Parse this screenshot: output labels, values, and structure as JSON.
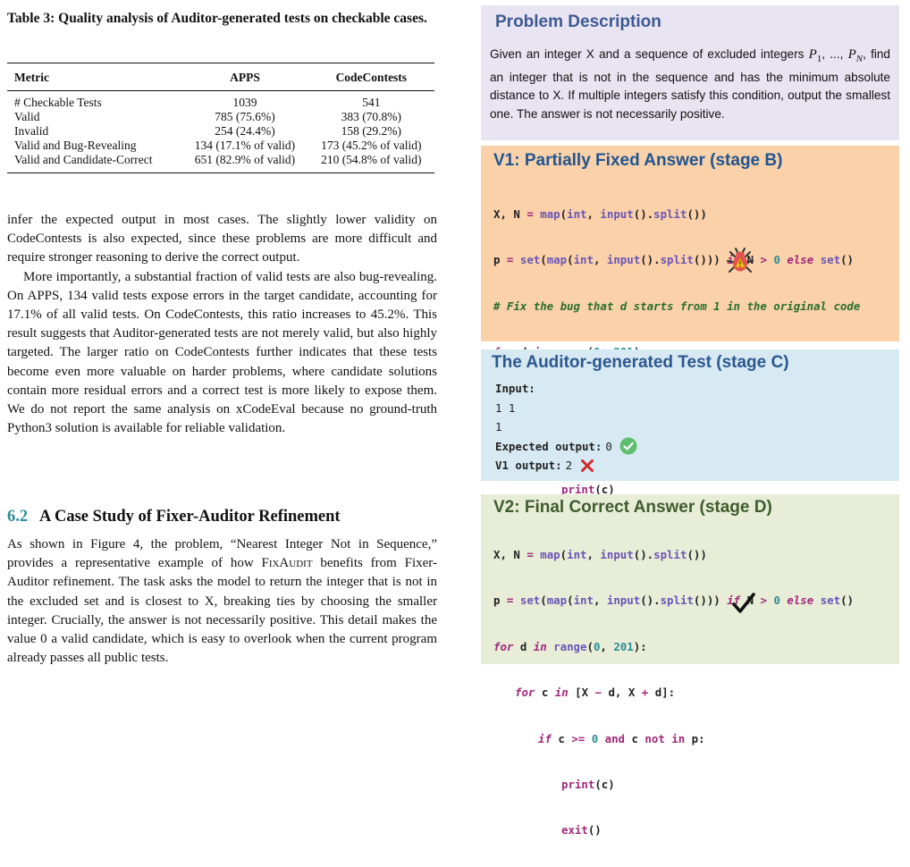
{
  "table": {
    "caption": "Table 3: Quality analysis of Auditor-generated tests on checkable cases.",
    "headers": [
      "Metric",
      "APPS",
      "CodeContests"
    ],
    "rows": [
      [
        "# Checkable Tests",
        "1039",
        "541"
      ],
      [
        "Valid",
        "785 (75.6%)",
        "383 (70.8%)"
      ],
      [
        "Invalid",
        "254 (24.4%)",
        "158 (29.2%)"
      ],
      [
        "Valid and Bug-Revealing",
        "134 (17.1% of valid)",
        "173 (45.2% of valid)"
      ],
      [
        "Valid and Candidate-Correct",
        "651 (82.9% of valid)",
        "210 (54.8% of valid)"
      ]
    ]
  },
  "body": {
    "para1": "infer the expected output in most cases. The slightly lower validity on CodeContests is also expected, since these problems are more difficult and require stronger reasoning to derive the correct output.",
    "para2": "More importantly, a substantial fraction of valid tests are also bug-revealing. On APPS, 134 valid tests expose errors in the target candidate, accounting for 17.1% of all valid tests. On CodeContests, this ratio increases to 45.2%. This result suggests that Auditor-generated tests are not merely valid, but also highly targeted. The larger ratio on CodeContests further indicates that these tests become even more valuable on harder problems, where candidate solutions contain more residual errors and a correct test is more likely to expose them. We do not report the same analysis on xCodeEval because no ground-truth Python3 solution is available for reliable validation."
  },
  "section": {
    "number": "6.2",
    "title": "A Case Study of Fixer-Auditor Refinement",
    "text_before": "As shown in Figure 4, the problem, “Nearest Integer Not in Sequence,” provides a representative example of how ",
    "system_name": "FixAudit",
    "text_after": " benefits from Fixer-Auditor refinement. The task asks the model to return the integer that is not in the excluded set and is closest to X, breaking ties by choosing the smaller integer. Crucially, the answer is not necessarily positive. This detail makes the value 0 a valid candidate, which is easy to overlook when the current program already passes all public tests."
  },
  "figure": {
    "problem": {
      "title": "Problem Description",
      "text_1": "Given an integer X and a sequence of excluded integers ",
      "p1_base": "P",
      "p1_sub": "1",
      "text_2": ", ..., ",
      "pn_base": "P",
      "pn_sub": "N",
      "text_3": ", find an integer that is not in the sequence and has the minimum absolute distance to X. If multiple integers satisfy this condition, output the smallest one. The answer is not necessarily positive."
    },
    "v1": {
      "title": "V1: Partially Fixed Answer (stage B)",
      "comment": "# Fix the bug that d starts from 1 in the original code",
      "bug_icon": "bug-icon"
    },
    "test": {
      "title": "The Auditor-generated Test (stage C)",
      "input_label": "Input:",
      "input_line1": "1 1",
      "input_line2": "1",
      "expected_label": "Expected output:",
      "expected_value": "0",
      "v1_label": "V1 output:",
      "v1_value": "2",
      "check_icon": "check-circle-icon",
      "cross_icon": "cross-icon"
    },
    "v2": {
      "title": "V2: Final Correct Answer (stage D)",
      "check_icon": "checkmark-icon"
    },
    "code": {
      "line1_a": "X, N ",
      "line1_eq": "=",
      "line1_map": "map",
      "line1_b": "(",
      "line1_int": "int",
      "line1_c": ", ",
      "line1_input": "input",
      "line1_d": "().",
      "line1_split": "split",
      "line1_e": "())",
      "line2_a": "p ",
      "line2_eq": "=",
      "line2_set": "set",
      "line2_b": "(",
      "line2_map": "map",
      "line2_c": "(",
      "line2_int": "int",
      "line2_d": ", ",
      "line2_input": "input",
      "line2_e": "().",
      "line2_split": "split",
      "line2_f": "())) ",
      "line2_if": "if",
      "line2_g": " N ",
      "line2_gt": ">",
      "line2_zero": " 0 ",
      "line2_else": "else",
      "line2_set2": " set",
      "line2_h": "()",
      "for_kw": "for",
      "d_var": " d ",
      "in_kw": "in",
      "range_fn": " range",
      "range_open": "(",
      "range_0": "0",
      "range_sep": ", ",
      "range_201": "201",
      "range_close": "):",
      "c_var": " c ",
      "list_expr": " [X ",
      "minus": "−",
      "list_mid": " d, X ",
      "plus": "+",
      "list_end": " d]:",
      "if_kw": "if",
      "c_word": " c ",
      "gt": ">",
      "gte": ">=",
      "zero": " 0 ",
      "and_kw": "and",
      "c_not": " c ",
      "not_kw": "not",
      "in2": " in",
      "p_end": " p:",
      "print_fn": "print",
      "print_arg": "(c)",
      "exit_fn": "exit",
      "exit_arg": "()"
    }
  }
}
